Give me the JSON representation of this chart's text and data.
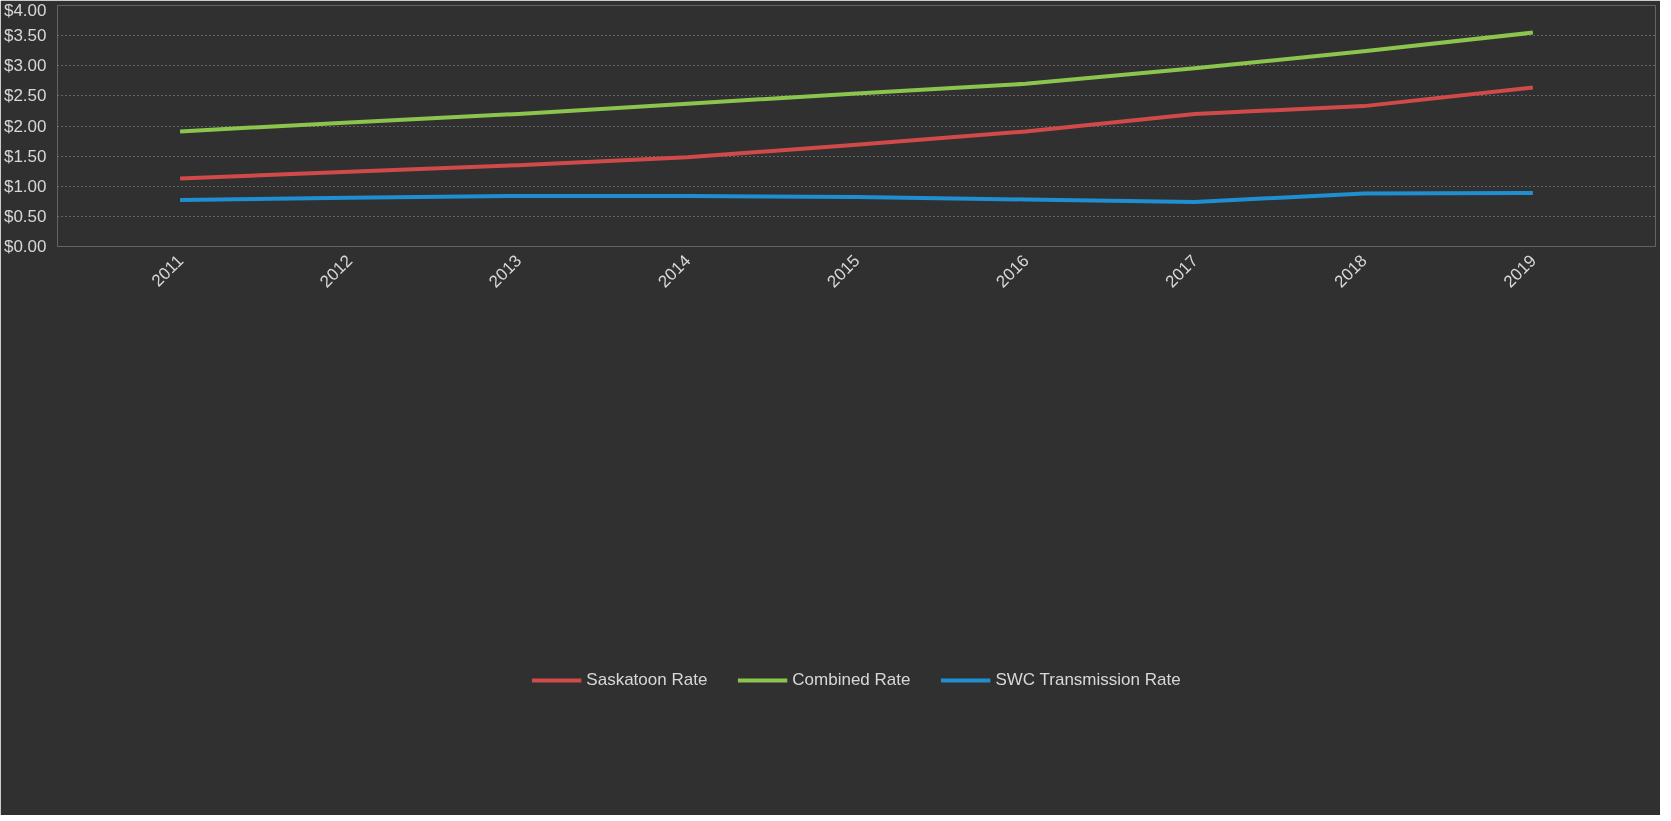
{
  "chart_data": {
    "type": "line",
    "categories": [
      "2011",
      "2012",
      "2013",
      "2014",
      "2015",
      "2016",
      "2017",
      "2018",
      "2019"
    ],
    "series": [
      {
        "name": "Saskatoon Rate",
        "color": "#d04a4a",
        "values": [
          1.13,
          1.24,
          1.35,
          1.48,
          1.69,
          1.91,
          2.2,
          2.33,
          2.64
        ]
      },
      {
        "name": "Combined Rate",
        "color": "#8cc54e",
        "values": [
          1.91,
          2.06,
          2.2,
          2.37,
          2.54,
          2.7,
          2.96,
          3.24,
          3.55
        ]
      },
      {
        "name": "SWC Transmission Rate",
        "color": "#1f8fd2",
        "values": [
          0.77,
          0.81,
          0.84,
          0.84,
          0.82,
          0.78,
          0.74,
          0.88,
          0.89
        ]
      }
    ],
    "ylim": [
      0,
      4
    ],
    "yticks": [
      {
        "value": 0,
        "label": "$0.00"
      },
      {
        "value": 0.5,
        "label": "$0.50"
      },
      {
        "value": 1,
        "label": "$1.00"
      },
      {
        "value": 1.5,
        "label": "$1.50"
      },
      {
        "value": 2,
        "label": "$2.00"
      },
      {
        "value": 2.5,
        "label": "$2.50"
      },
      {
        "value": 3,
        "label": "$3.00"
      },
      {
        "value": 3.5,
        "label": "$3.50"
      },
      {
        "value": 4,
        "label": "$4.00"
      }
    ],
    "grid": "y",
    "legend": "bottom",
    "line_style": "solid",
    "marker": "none"
  }
}
